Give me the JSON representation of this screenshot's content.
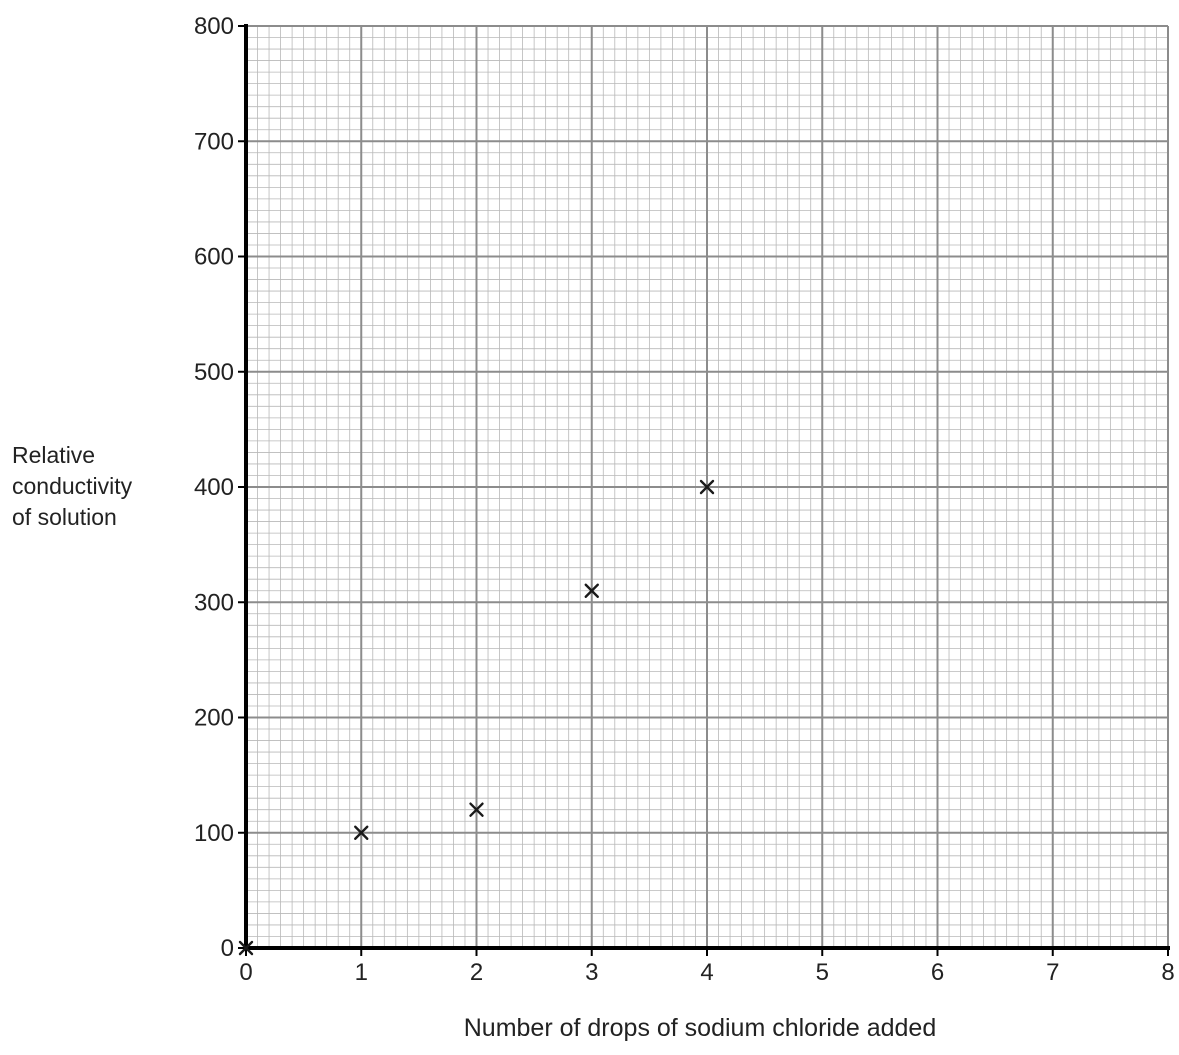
{
  "chart_data": {
    "type": "scatter",
    "xlabel": "Number of drops of sodium chloride added",
    "ylabel_lines": [
      "Relative",
      "conductivity",
      "of solution"
    ],
    "xlim": [
      0,
      8
    ],
    "ylim": [
      0,
      800
    ],
    "x_ticks": [
      0,
      1,
      2,
      3,
      4,
      5,
      6,
      7,
      8
    ],
    "y_ticks": [
      0,
      100,
      200,
      300,
      400,
      500,
      600,
      700,
      800
    ],
    "x_minor_per_major": 10,
    "y_minor_per_major": 10,
    "grid": true,
    "marker": "x",
    "series": [
      {
        "points": [
          {
            "x": 0,
            "y": 0
          },
          {
            "x": 1,
            "y": 100
          },
          {
            "x": 2,
            "y": 120
          },
          {
            "x": 3,
            "y": 310
          },
          {
            "x": 4,
            "y": 400
          }
        ]
      }
    ]
  }
}
